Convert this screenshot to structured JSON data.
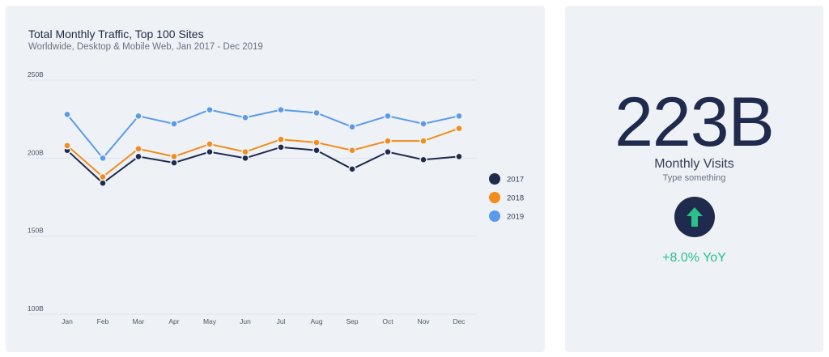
{
  "chart_data": {
    "type": "line",
    "title": "Total Monthly Traffic, Top 100 Sites",
    "subtitle": "Worldwide, Desktop & Mobile Web, Jan 2017 - Dec 2019",
    "categories": [
      "Jan",
      "Feb",
      "Mar",
      "Apr",
      "May",
      "Jun",
      "Jul",
      "Aug",
      "Sep",
      "Oct",
      "Nov",
      "Dec"
    ],
    "y_ticks": [
      100,
      150,
      200,
      250
    ],
    "y_tick_labels": [
      "100B",
      "150B",
      "200B",
      "250B"
    ],
    "ylim": [
      100,
      250
    ],
    "grid": true,
    "legend_position": "right",
    "series": [
      {
        "name": "2017",
        "color": "#1f2a4d",
        "values": [
          205,
          184,
          201,
          197,
          204,
          200,
          207,
          205,
          193,
          204,
          199,
          201
        ]
      },
      {
        "name": "2018",
        "color": "#f28c1a",
        "values": [
          208,
          188,
          206,
          201,
          209,
          204,
          212,
          210,
          205,
          211,
          211,
          219
        ]
      },
      {
        "name": "2019",
        "color": "#5b9ae8",
        "values": [
          228,
          200,
          227,
          222,
          231,
          226,
          231,
          229,
          220,
          227,
          222,
          227
        ]
      }
    ]
  },
  "kpi": {
    "value": "223B",
    "label": "Monthly Visits",
    "sublabel": "Type something",
    "change": "+8.0% YoY",
    "badge_icon": "arrow-up-icon",
    "colors": {
      "badge": "#1f2a4d",
      "arrow": "#2bbf8a",
      "change": "#2bbf8a"
    }
  }
}
